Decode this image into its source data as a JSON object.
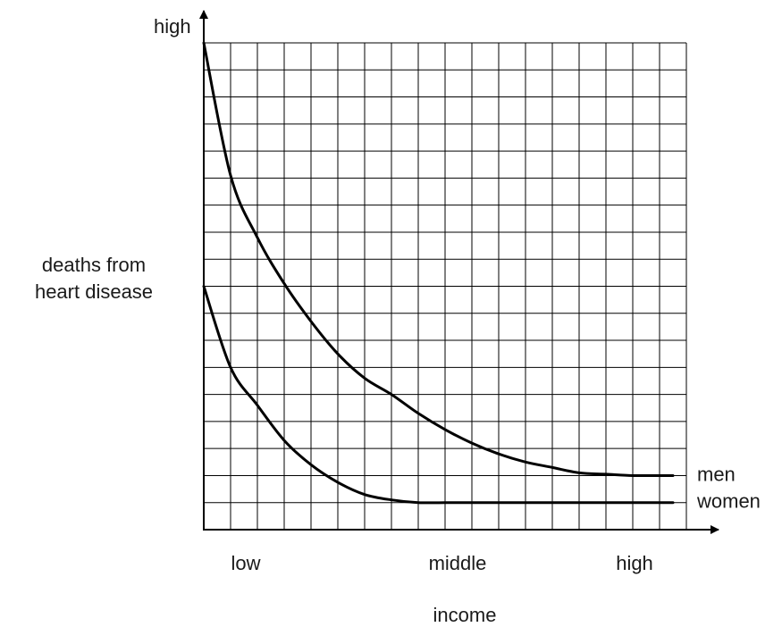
{
  "chart_data": {
    "type": "line",
    "y_axis_end_label": "high",
    "ylabel": "deaths from heart disease",
    "xlabel": "income",
    "x_labels": [
      "low",
      "middle",
      "high"
    ],
    "x": [
      0,
      1,
      2,
      3,
      4,
      5,
      6,
      7,
      8,
      9,
      10,
      11,
      12,
      13,
      14,
      15,
      16,
      17,
      17.5
    ],
    "series": [
      {
        "name": "men",
        "color": "#000000",
        "values": [
          18,
          13.1,
          10.8,
          9.1,
          7.7,
          6.5,
          5.6,
          5.0,
          4.3,
          3.7,
          3.2,
          2.8,
          2.5,
          2.3,
          2.1,
          2.05,
          2.0,
          2.0,
          2.0
        ]
      },
      {
        "name": "women",
        "color": "#000000",
        "values": [
          9,
          6.0,
          4.6,
          3.3,
          2.4,
          1.75,
          1.3,
          1.1,
          1,
          1,
          1,
          1,
          1,
          1,
          1,
          1,
          1,
          1,
          1
        ]
      }
    ],
    "xlim": [
      0,
      18
    ],
    "ylim": [
      0,
      18
    ],
    "xticks": [
      0,
      1,
      2,
      3,
      4,
      5,
      6,
      7,
      8,
      9,
      10,
      11,
      12,
      13,
      14,
      15,
      16,
      17,
      18
    ],
    "yticks": [
      0,
      1,
      2,
      3,
      4,
      5,
      6,
      7,
      8,
      9,
      10,
      11,
      12,
      13,
      14,
      15,
      16,
      17,
      18
    ],
    "grid": true
  }
}
